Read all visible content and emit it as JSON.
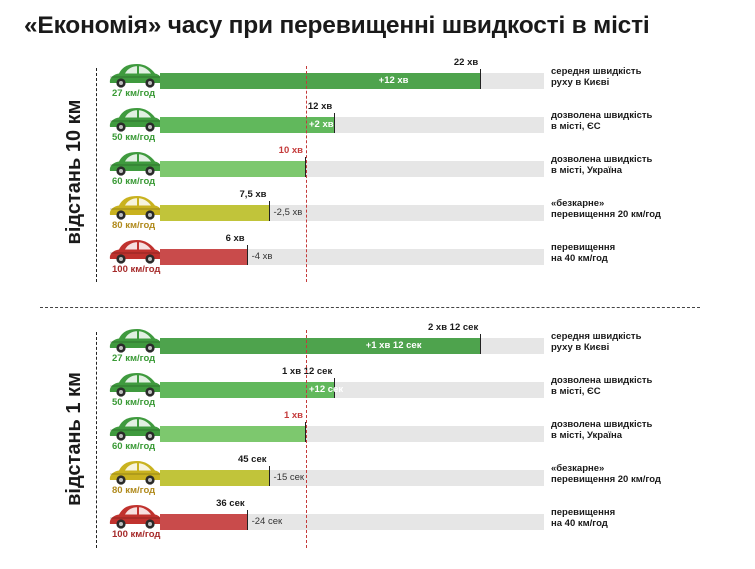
{
  "title": "«Економія» часу при перевищенні швидкості в місті",
  "colors": {
    "green_dark": "#4ea34d",
    "green_mid": "#61b85c",
    "green_light": "#7dc86e",
    "yellow": "#c1c43a",
    "red": "#c94b4b",
    "track": "#e6e6e6",
    "car_green": "#3f9a3e",
    "car_yellow": "#c9b21f",
    "car_red": "#c0322e",
    "speed_green": "#3a9a36",
    "speed_yellow": "#b08a1c",
    "speed_red": "#a62a2a",
    "ref_red": "#c43a3a"
  },
  "chart_data": [
    {
      "type": "bar",
      "side_label": "відстань 10 км",
      "unit": "minutes",
      "reference_index": 2,
      "rows": [
        {
          "speed": "27 км/год",
          "minutes": 22,
          "time_label": "22 хв",
          "diff_label": "+12 хв",
          "description": [
            "середня швидкість",
            "руху в Києві"
          ],
          "car_icon": "car-green-icon",
          "color": "green_dark",
          "car_color": "car_green",
          "speed_color": "speed_green"
        },
        {
          "speed": "50 км/год",
          "minutes": 12,
          "time_label": "12 хв",
          "diff_label": "+2 хв",
          "description": [
            "дозволена швидкість",
            "в місті, ЄС"
          ],
          "car_icon": "car-green-icon",
          "color": "green_mid",
          "car_color": "car_green",
          "speed_color": "speed_green"
        },
        {
          "speed": "60 км/год",
          "minutes": 10,
          "time_label": "10 хв",
          "diff_label": "",
          "description": [
            "дозволена швидкість",
            "в місті, Україна"
          ],
          "car_icon": "car-green-icon",
          "color": "green_light",
          "car_color": "car_green",
          "speed_color": "speed_green"
        },
        {
          "speed": "80 км/год",
          "minutes": 7.5,
          "time_label": "7,5 хв",
          "diff_label": "-2,5 хв",
          "description": [
            "«безкарне»",
            "перевищення 20 км/год"
          ],
          "car_icon": "car-yellow-icon",
          "color": "yellow",
          "car_color": "car_yellow",
          "speed_color": "speed_yellow"
        },
        {
          "speed": "100 км/год",
          "minutes": 6,
          "time_label": "6 хв",
          "diff_label": "-4 хв",
          "description": [
            "перевищення",
            "на 40 км/год"
          ],
          "car_icon": "car-red-icon",
          "color": "red",
          "car_color": "car_red",
          "speed_color": "speed_red"
        }
      ]
    },
    {
      "type": "bar",
      "side_label": "відстань 1 км",
      "unit": "seconds",
      "reference_index": 2,
      "rows": [
        {
          "speed": "27 км/год",
          "minutes": 2.2,
          "time_label": "2 хв 12 сек",
          "diff_label": "+1 хв 12 сек",
          "description": [
            "середня швидкість",
            "руху в Києві"
          ],
          "car_icon": "car-green-icon",
          "color": "green_dark",
          "car_color": "car_green",
          "speed_color": "speed_green"
        },
        {
          "speed": "50 км/год",
          "minutes": 1.2,
          "time_label": "1 хв 12 сек",
          "diff_label": "+12 сек",
          "description": [
            "дозволена швидкість",
            "в місті, ЄС"
          ],
          "car_icon": "car-green-icon",
          "color": "green_mid",
          "car_color": "car_green",
          "speed_color": "speed_green"
        },
        {
          "speed": "60 км/год",
          "minutes": 1,
          "time_label": "1 хв",
          "diff_label": "",
          "description": [
            "дозволена швидкість",
            "в місті, Україна"
          ],
          "car_icon": "car-green-icon",
          "color": "green_light",
          "car_color": "car_green",
          "speed_color": "speed_green"
        },
        {
          "speed": "80 км/год",
          "minutes": 0.75,
          "time_label": "45 сек",
          "diff_label": "-15 сек",
          "description": [
            "«безкарне»",
            "перевищення 20 км/год"
          ],
          "car_icon": "car-yellow-icon",
          "color": "yellow",
          "car_color": "car_yellow",
          "speed_color": "speed_yellow"
        },
        {
          "speed": "100 км/год",
          "minutes": 0.6,
          "time_label": "36 сек",
          "diff_label": "-24 сек",
          "description": [
            "перевищення",
            "на 40 км/год"
          ],
          "car_icon": "car-red-icon",
          "color": "red",
          "car_color": "car_red",
          "speed_color": "speed_red"
        }
      ]
    }
  ]
}
